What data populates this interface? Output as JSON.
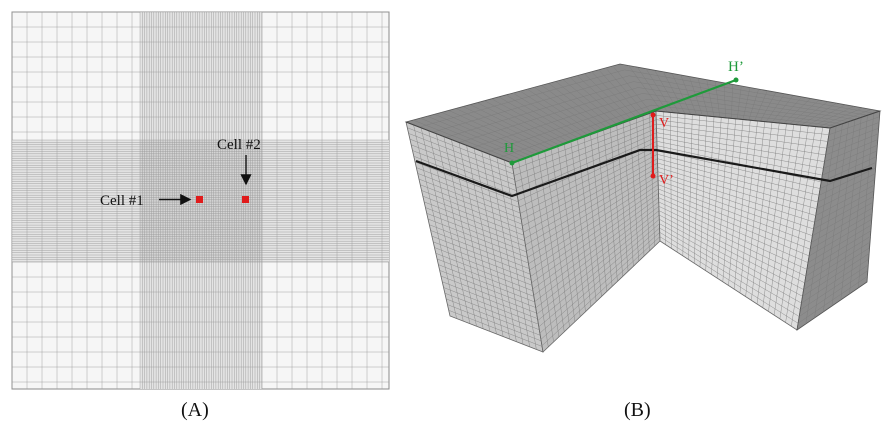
{
  "panel_a": {
    "caption": "(A)",
    "cell1": {
      "label": "Cell #1"
    },
    "cell2": {
      "label": "Cell #2"
    }
  },
  "panel_b": {
    "caption": "(B)",
    "h_label": "H",
    "h_prime_label": "H’",
    "v_label": "V",
    "v_prime_label": "V’"
  },
  "colors": {
    "marker": "#e01b1b",
    "profile_h": "#1e9a3a",
    "profile_v": "#e01b1b",
    "grid": "#9a9a9a",
    "background": "#f6f6f6"
  }
}
